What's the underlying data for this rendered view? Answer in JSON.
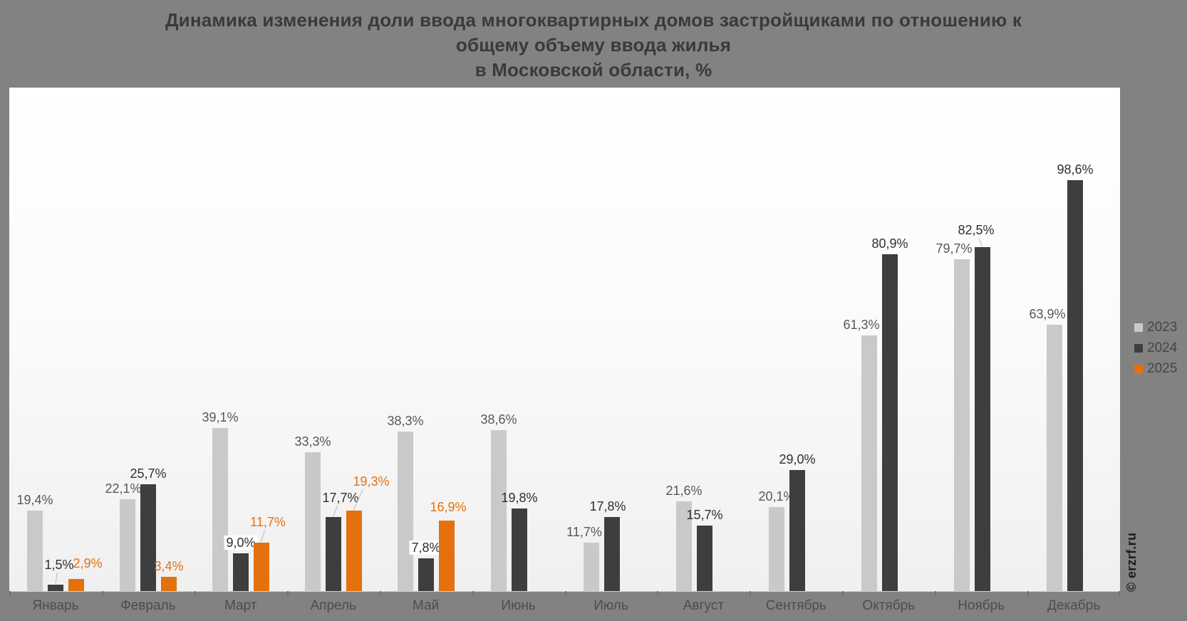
{
  "title": {
    "line1": "Динамика изменения доли ввода многоквартирных домов застройщиками по отношению к",
    "line2": "общему объему ввода жилья",
    "line3": "в Московской области, %"
  },
  "watermark": "© erzrf.ru",
  "legend": {
    "position": "right",
    "items": [
      {
        "label": "2023",
        "color": "#c9c9c9"
      },
      {
        "label": "2024",
        "color": "#3e3e3e"
      },
      {
        "label": "2025",
        "color": "#e4710d"
      }
    ]
  },
  "chart_data": {
    "type": "bar",
    "title": "Динамика изменения доли ввода многоквартирных домов застройщиками по отношению к общему объему ввода жилья в Московской области, %",
    "unit": "%",
    "decimal_separator": ",",
    "grid": false,
    "value_labels": true,
    "ylim": [
      0,
      121
    ],
    "categories": [
      "Январь",
      "Февраль",
      "Март",
      "Апрель",
      "Май",
      "Июнь",
      "Июль",
      "Август",
      "Сентябрь",
      "Октябрь",
      "Ноябрь",
      "Декабрь"
    ],
    "series": [
      {
        "name": "2023",
        "color": "#c9c9c9",
        "label_color": "#565656",
        "values": [
          19.4,
          22.1,
          39.1,
          33.3,
          38.3,
          38.6,
          11.7,
          21.6,
          20.1,
          61.3,
          79.7,
          63.9
        ]
      },
      {
        "name": "2024",
        "color": "#3e3e3e",
        "label_color": "#2e2e2e",
        "values": [
          1.5,
          25.7,
          9.0,
          17.7,
          7.8,
          19.8,
          17.8,
          15.7,
          29.0,
          80.9,
          82.5,
          98.6
        ]
      },
      {
        "name": "2025",
        "color": "#e4710d",
        "label_color": "#e4710d",
        "values": [
          2.9,
          3.4,
          11.7,
          19.3,
          16.9,
          null,
          null,
          null,
          null,
          null,
          null,
          null
        ]
      }
    ]
  }
}
